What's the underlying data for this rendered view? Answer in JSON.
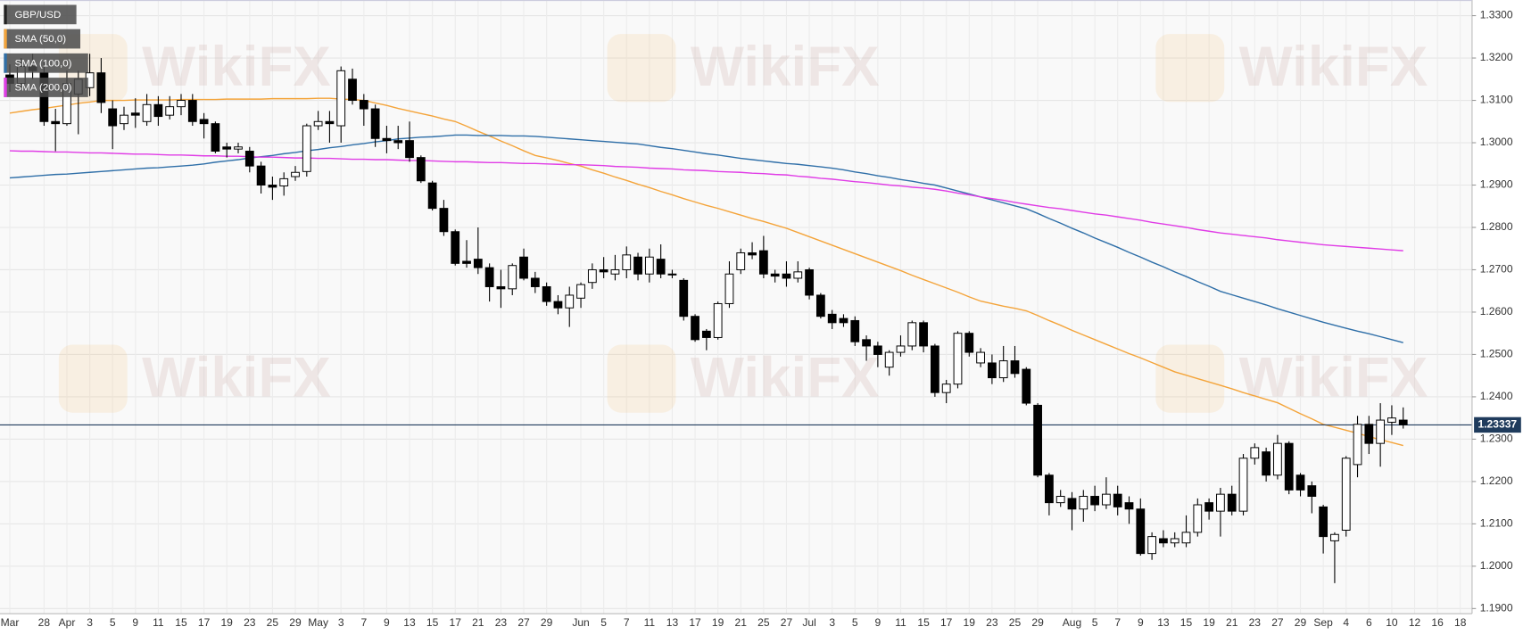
{
  "chart_data": {
    "type": "candlestick",
    "title": "GBP/USD",
    "watermark": "WikiFX",
    "grid": true,
    "color_up": "#ffffff",
    "color_down": "#000000",
    "last_price": 1.23337,
    "last_price_color": "#1f3b5c",
    "ylim": [
      1.1888,
      1.3337
    ],
    "yticks": [
      {
        "value": 1.19,
        "label": "1.1900"
      },
      {
        "value": 1.2,
        "label": "1.2000"
      },
      {
        "value": 1.21,
        "label": "1.2100"
      },
      {
        "value": 1.22,
        "label": "1.2200"
      },
      {
        "value": 1.23,
        "label": "1.2300"
      },
      {
        "value": 1.24,
        "label": "1.2400"
      },
      {
        "value": 1.25,
        "label": "1.2500"
      },
      {
        "value": 1.26,
        "label": "1.2600"
      },
      {
        "value": 1.27,
        "label": "1.2700"
      },
      {
        "value": 1.28,
        "label": "1.2800"
      },
      {
        "value": 1.29,
        "label": "1.2900"
      },
      {
        "value": 1.3,
        "label": "1.3000"
      },
      {
        "value": 1.31,
        "label": "1.3100"
      },
      {
        "value": 1.32,
        "label": "1.3200"
      },
      {
        "value": 1.33,
        "label": "1.3300"
      }
    ],
    "categories": [
      "Mar",
      null,
      null,
      "28",
      null,
      "Apr",
      null,
      "3",
      null,
      "5",
      null,
      "9",
      null,
      "11",
      null,
      "15",
      null,
      "17",
      null,
      "19",
      null,
      "23",
      null,
      "25",
      null,
      "29",
      null,
      "May",
      null,
      "3",
      null,
      "7",
      null,
      "9",
      null,
      "13",
      null,
      "15",
      null,
      "17",
      null,
      "21",
      null,
      "23",
      null,
      "27",
      null,
      "29",
      null,
      null,
      "Jun",
      null,
      "5",
      null,
      "7",
      null,
      "11",
      null,
      "13",
      null,
      "17",
      null,
      "19",
      null,
      "21",
      null,
      "25",
      null,
      "27",
      null,
      "Jul",
      null,
      "3",
      null,
      "5",
      null,
      "9",
      null,
      "11",
      null,
      "15",
      null,
      "17",
      null,
      "19",
      null,
      "23",
      null,
      "25",
      null,
      "29",
      null,
      null,
      "Aug",
      null,
      "5",
      null,
      "7",
      null,
      "9",
      null,
      "13",
      null,
      "15",
      null,
      "19",
      null,
      "21",
      null,
      "23",
      null,
      "27",
      null,
      "29",
      null,
      "Sep",
      null,
      "4",
      null,
      "6",
      null,
      "10",
      null,
      "12",
      null,
      "16",
      null,
      "18"
    ],
    "open": [
      1.316,
      1.314,
      1.318,
      1.3165,
      1.305,
      1.3045,
      1.3115,
      1.313,
      1.3165,
      1.308,
      1.3045,
      1.307,
      1.305,
      1.309,
      1.3065,
      1.3085,
      1.31,
      1.3055,
      1.3045,
      1.299,
      1.2985,
      1.298,
      1.2945,
      1.29,
      1.2898,
      1.292,
      1.2932,
      1.304,
      1.305,
      1.304,
      1.315,
      1.31,
      1.308,
      1.301,
      1.3005,
      1.3005,
      1.2965,
      1.2905,
      1.2845,
      1.279,
      1.272,
      1.2725,
      1.2705,
      1.266,
      1.2655,
      1.273,
      1.268,
      1.266,
      1.2625,
      1.261,
      1.2633,
      1.267,
      1.27,
      1.269,
      1.27,
      1.273,
      1.269,
      1.2725,
      1.269,
      1.2675,
      1.259,
      1.2555,
      1.254,
      1.262,
      1.27,
      1.274,
      1.2745,
      1.269,
      1.269,
      1.268,
      1.27,
      1.264,
      1.2595,
      1.2585,
      1.258,
      1.2535,
      1.252,
      1.247,
      1.2505,
      1.252,
      1.2575,
      1.252,
      1.241,
      1.243,
      1.255,
      1.248,
      1.248,
      1.2445,
      1.2485,
      1.2465,
      1.238,
      1.2215,
      1.215,
      1.216,
      1.2135,
      1.2165,
      1.2145,
      1.217,
      1.215,
      1.2135,
      1.203,
      1.2065,
      1.2055,
      1.2055,
      1.208,
      1.215,
      1.213,
      1.217,
      1.213,
      1.2255,
      1.227,
      1.2215,
      1.229,
      1.2215,
      1.219,
      1.214,
      1.206,
      1.2085,
      1.224,
      1.2335,
      1.229,
      1.234,
      1.2345,
      null,
      null,
      null,
      null,
      null
    ],
    "high": [
      1.3185,
      1.32,
      1.321,
      1.319,
      1.308,
      1.317,
      1.317,
      1.321,
      1.32,
      1.31,
      1.3085,
      1.3105,
      1.3115,
      1.311,
      1.311,
      1.3115,
      1.3115,
      1.307,
      1.305,
      1.3,
      1.3,
      1.299,
      1.2955,
      1.292,
      1.293,
      1.2945,
      1.3045,
      1.3075,
      1.3075,
      1.318,
      1.3175,
      1.3115,
      1.309,
      1.304,
      1.304,
      1.305,
      1.297,
      1.291,
      1.2865,
      1.2795,
      1.277,
      1.28,
      1.2715,
      1.27,
      1.2715,
      1.275,
      1.2695,
      1.267,
      1.264,
      1.266,
      1.267,
      1.2715,
      1.273,
      1.2735,
      1.2755,
      1.274,
      1.275,
      1.276,
      1.27,
      1.268,
      1.2595,
      1.256,
      1.2625,
      1.272,
      1.275,
      1.2765,
      1.278,
      1.27,
      1.272,
      1.272,
      1.2705,
      1.2645,
      1.2605,
      1.2595,
      1.259,
      1.2545,
      1.253,
      1.251,
      1.2545,
      1.258,
      1.258,
      1.2525,
      1.244,
      1.2555,
      1.2555,
      1.2515,
      1.25,
      1.252,
      1.252,
      1.247,
      1.2385,
      1.222,
      1.218,
      1.2175,
      1.218,
      1.219,
      1.221,
      1.219,
      1.2165,
      1.216,
      1.208,
      1.2085,
      1.208,
      1.212,
      1.216,
      1.216,
      1.2185,
      1.219,
      1.2265,
      1.229,
      1.228,
      1.231,
      1.2295,
      1.222,
      1.22,
      1.2145,
      1.208,
      1.226,
      1.2355,
      1.2355,
      1.2385,
      1.238,
      1.2375,
      null,
      null,
      null,
      null,
      null
    ],
    "low": [
      1.312,
      1.313,
      1.315,
      1.304,
      1.298,
      1.304,
      1.302,
      1.311,
      1.307,
      1.2985,
      1.303,
      1.3035,
      1.304,
      1.304,
      1.3055,
      1.3065,
      1.304,
      1.301,
      1.2975,
      1.2965,
      1.2975,
      1.293,
      1.288,
      1.2865,
      1.2875,
      1.291,
      1.292,
      1.303,
      1.3,
      1.3,
      1.309,
      1.304,
      1.299,
      1.2975,
      1.2985,
      1.2955,
      1.2905,
      1.284,
      1.278,
      1.271,
      1.2705,
      1.269,
      1.2625,
      1.261,
      1.264,
      1.2675,
      1.2645,
      1.2615,
      1.2595,
      1.2565,
      1.261,
      1.2655,
      1.268,
      1.2675,
      1.268,
      1.2675,
      1.267,
      1.268,
      1.268,
      1.258,
      1.253,
      1.251,
      1.2535,
      1.261,
      1.269,
      1.2725,
      1.268,
      1.267,
      1.266,
      1.267,
      1.263,
      1.2585,
      1.256,
      1.2565,
      1.252,
      1.2485,
      1.247,
      1.245,
      1.2495,
      1.251,
      1.2505,
      1.24,
      1.2385,
      1.242,
      1.2495,
      1.247,
      1.243,
      1.2435,
      1.2445,
      1.238,
      1.221,
      1.212,
      1.214,
      1.2085,
      1.2105,
      1.213,
      1.2135,
      1.212,
      1.21,
      1.2025,
      1.2015,
      1.2045,
      1.2045,
      1.2045,
      1.207,
      1.211,
      1.207,
      1.212,
      1.212,
      1.224,
      1.22,
      1.2205,
      1.217,
      1.2165,
      1.2125,
      1.203,
      1.196,
      1.207,
      1.221,
      1.2265,
      1.2235,
      1.231,
      1.2325,
      null,
      null,
      null,
      null,
      null
    ],
    "close": [
      1.314,
      1.318,
      1.317,
      1.305,
      1.3045,
      1.314,
      1.315,
      1.3165,
      1.3095,
      1.304,
      1.3065,
      1.3065,
      1.309,
      1.3062,
      1.3085,
      1.31,
      1.305,
      1.3045,
      1.298,
      1.2985,
      1.299,
      1.2945,
      1.29,
      1.2895,
      1.2915,
      1.293,
      1.304,
      1.305,
      1.3045,
      1.317,
      1.31,
      1.308,
      1.301,
      1.3005,
      1.3,
      1.2965,
      1.291,
      1.2845,
      1.279,
      1.2715,
      1.2715,
      1.2705,
      1.266,
      1.2655,
      1.271,
      1.268,
      1.266,
      1.2625,
      1.261,
      1.264,
      1.2665,
      1.27,
      1.2695,
      1.27,
      1.2735,
      1.269,
      1.273,
      1.269,
      1.2688,
      1.259,
      1.2535,
      1.254,
      1.262,
      1.269,
      1.274,
      1.2735,
      1.269,
      1.2685,
      1.268,
      1.2695,
      1.264,
      1.259,
      1.2575,
      1.2575,
      1.253,
      1.252,
      1.25,
      1.2505,
      1.252,
      1.2575,
      1.252,
      1.241,
      1.243,
      1.255,
      1.2505,
      1.2505,
      1.2445,
      1.2485,
      1.2455,
      1.2385,
      1.2215,
      1.215,
      1.2165,
      1.2135,
      1.2165,
      1.2145,
      1.217,
      1.214,
      1.2135,
      1.203,
      1.207,
      1.2055,
      1.2065,
      1.208,
      1.2145,
      1.213,
      1.217,
      1.213,
      1.2255,
      1.228,
      1.2215,
      1.229,
      1.218,
      1.218,
      1.2165,
      1.207,
      1.2075,
      1.2255,
      1.2335,
      1.229,
      1.2345,
      1.235,
      1.2334,
      null,
      null,
      null,
      null,
      null
    ],
    "series": [
      {
        "name": "SMA (50,0)",
        "color": "#f4a43a",
        "values": [
          1.307,
          1.3074,
          1.3078,
          1.3081,
          1.3085,
          1.3089,
          1.3093,
          1.3096,
          1.31,
          1.31,
          1.31,
          1.3101,
          1.3101,
          1.3101,
          1.3101,
          1.3102,
          1.3102,
          1.3102,
          1.3102,
          1.3103,
          1.3103,
          1.3103,
          1.3103,
          1.3104,
          1.3104,
          1.3104,
          1.3104,
          1.3105,
          1.3105,
          1.3103,
          1.3102,
          1.31,
          1.3094,
          1.3088,
          1.3081,
          1.3075,
          1.3069,
          1.3063,
          1.3056,
          1.305,
          1.3039,
          1.3027,
          1.3016,
          1.3004,
          1.2993,
          1.2981,
          1.297,
          1.2964,
          1.2958,
          1.2951,
          1.2945,
          1.2936,
          1.2928,
          1.2919,
          1.2911,
          1.2902,
          1.2894,
          1.2885,
          1.2877,
          1.2868,
          1.286,
          1.2852,
          1.2845,
          1.2837,
          1.2829,
          1.2821,
          1.2814,
          1.2806,
          1.2798,
          1.2788,
          1.2778,
          1.2768,
          1.2758,
          1.2748,
          1.2738,
          1.2728,
          1.2718,
          1.2708,
          1.2698,
          1.2687,
          1.2677,
          1.2667,
          1.2657,
          1.2647,
          1.2636,
          1.2626,
          1.262,
          1.2614,
          1.2609,
          1.2603,
          1.2592,
          1.258,
          1.2569,
          1.2557,
          1.2546,
          1.2535,
          1.2524,
          1.2513,
          1.2502,
          1.2492,
          1.2481,
          1.247,
          1.2459,
          1.2451,
          1.2443,
          1.2435,
          1.2427,
          1.2419,
          1.241,
          1.2402,
          1.2394,
          1.2386,
          1.2373,
          1.236,
          1.2348,
          1.2335,
          1.2328,
          1.2321,
          1.2314,
          1.2306,
          1.2299,
          1.2292,
          1.2285,
          null,
          null,
          null,
          null,
          null
        ]
      },
      {
        "name": "SMA (100,0)",
        "color": "#2f6fa8",
        "values": [
          1.2917,
          1.2919,
          1.2921,
          1.2923,
          1.2925,
          1.2926,
          1.2928,
          1.293,
          1.2932,
          1.2934,
          1.2936,
          1.2938,
          1.294,
          1.2941,
          1.2943,
          1.2945,
          1.2947,
          1.295,
          1.2954,
          1.2957,
          1.296,
          1.2964,
          1.2967,
          1.297,
          1.2974,
          1.2977,
          1.2981,
          1.2984,
          1.2988,
          1.2991,
          1.2995,
          1.2998,
          1.3002,
          1.3005,
          1.3009,
          1.3011,
          1.3013,
          1.3014,
          1.3016,
          1.3018,
          1.3018,
          1.3017,
          1.3017,
          1.3017,
          1.3016,
          1.3016,
          1.3015,
          1.3013,
          1.3011,
          1.3009,
          1.3007,
          1.3005,
          1.3003,
          1.3001,
          1.2999,
          1.2997,
          1.2993,
          1.2989,
          1.2986,
          1.2982,
          1.2978,
          1.2974,
          1.2971,
          1.2967,
          1.2963,
          1.296,
          1.2957,
          1.2954,
          1.2951,
          1.2949,
          1.2946,
          1.2943,
          1.294,
          1.2936,
          1.2931,
          1.2927,
          1.2922,
          1.2918,
          1.2913,
          1.2909,
          1.2904,
          1.29,
          1.2893,
          1.2886,
          1.2879,
          1.2872,
          1.2865,
          1.2858,
          1.2851,
          1.2844,
          1.2833,
          1.2821,
          1.281,
          1.2798,
          1.2787,
          1.2775,
          1.2764,
          1.2753,
          1.2741,
          1.273,
          1.2718,
          1.2707,
          1.2695,
          1.2684,
          1.2672,
          1.2661,
          1.2649,
          1.2641,
          1.2633,
          1.2625,
          1.2617,
          1.2608,
          1.26,
          1.2592,
          1.2584,
          1.2576,
          1.2569,
          1.2562,
          1.2555,
          1.2549,
          1.2542,
          1.2535,
          1.2528,
          null,
          null,
          null,
          null,
          null
        ]
      },
      {
        "name": "SMA (200,0)",
        "color": "#e03ce6",
        "values": [
          1.2981,
          1.298,
          1.298,
          1.2979,
          1.2978,
          1.2978,
          1.2977,
          1.2976,
          1.2976,
          1.2975,
          1.2974,
          1.2973,
          1.2973,
          1.2972,
          1.2971,
          1.2971,
          1.297,
          1.2969,
          1.2969,
          1.2968,
          1.2968,
          1.2967,
          1.2966,
          1.2966,
          1.2965,
          1.2964,
          1.2964,
          1.2963,
          1.2963,
          1.2962,
          1.2961,
          1.2961,
          1.296,
          1.296,
          1.2959,
          1.2958,
          1.2958,
          1.2957,
          1.2956,
          1.2955,
          1.2955,
          1.2954,
          1.2953,
          1.2953,
          1.2952,
          1.2951,
          1.2951,
          1.295,
          1.2949,
          1.2948,
          1.2948,
          1.2947,
          1.2946,
          1.2944,
          1.2943,
          1.2942,
          1.294,
          1.2939,
          1.2938,
          1.2936,
          1.2935,
          1.2934,
          1.2932,
          1.2931,
          1.293,
          1.2928,
          1.2927,
          1.2925,
          1.2924,
          1.2921,
          1.2919,
          1.2916,
          1.2914,
          1.2911,
          1.2908,
          1.2906,
          1.2903,
          1.29,
          1.2898,
          1.2895,
          1.2893,
          1.289,
          1.2886,
          1.2881,
          1.2877,
          1.2872,
          1.2868,
          1.2864,
          1.2859,
          1.2855,
          1.2851,
          1.2847,
          1.2844,
          1.284,
          1.2836,
          1.2832,
          1.2829,
          1.2825,
          1.2821,
          1.2817,
          1.2812,
          1.2808,
          1.2804,
          1.28,
          1.2795,
          1.2791,
          1.2787,
          1.2784,
          1.2781,
          1.2778,
          1.2775,
          1.2771,
          1.2768,
          1.2765,
          1.2762,
          1.2759,
          1.2757,
          1.2755,
          1.2753,
          1.2751,
          1.2749,
          1.2747,
          1.2745,
          null,
          null,
          null,
          null,
          null
        ]
      }
    ]
  }
}
